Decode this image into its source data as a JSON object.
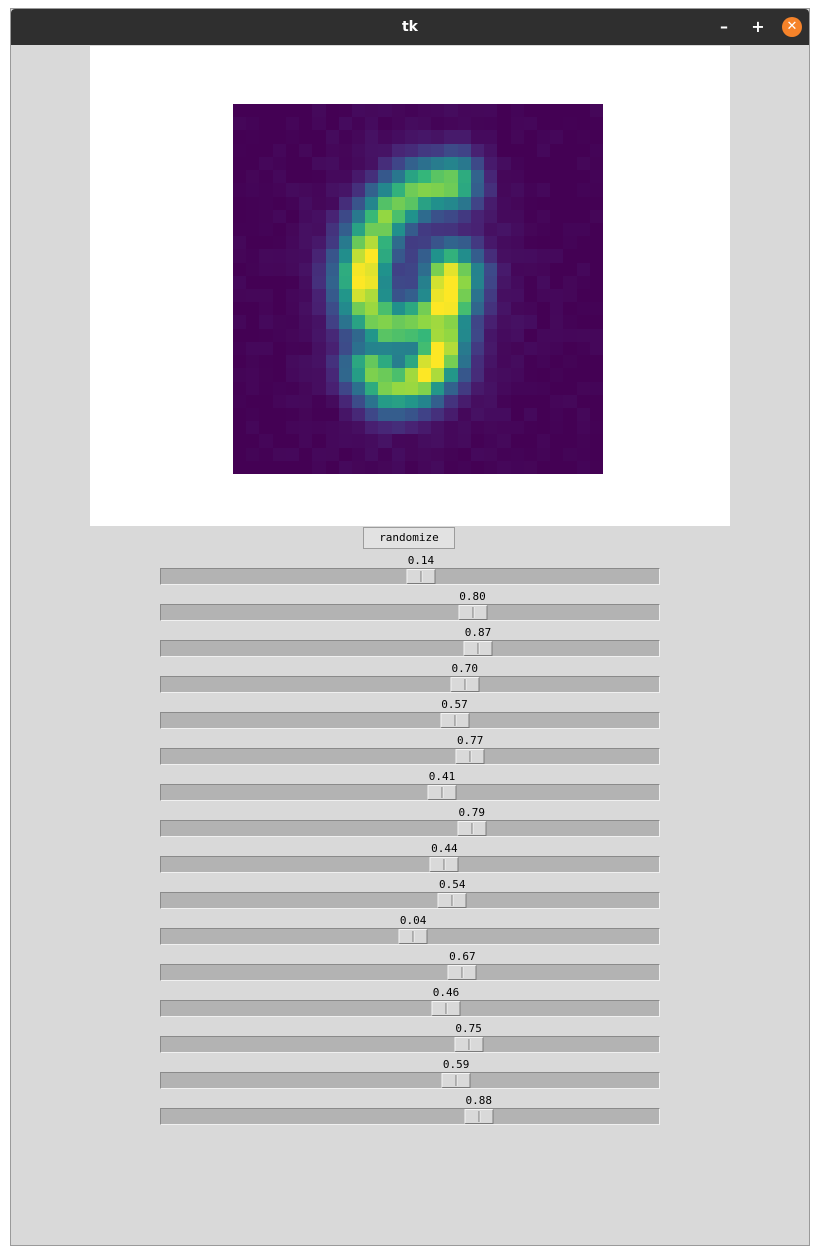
{
  "window": {
    "title": "tk"
  },
  "titlebar": {
    "minimize_icon": "minimize-icon",
    "maximize_icon": "maximize-icon",
    "close_icon": "close-icon"
  },
  "image": {
    "description_colormap": "viridis",
    "resolution": 28
  },
  "randomize_label": "randomize",
  "sliders": [
    {
      "label": "0.14",
      "value": 0.14
    },
    {
      "label": "0.80",
      "value": 0.8
    },
    {
      "label": "0.87",
      "value": 0.87
    },
    {
      "label": "0.70",
      "value": 0.7
    },
    {
      "label": "0.57",
      "value": 0.57
    },
    {
      "label": "0.77",
      "value": 0.77
    },
    {
      "label": "0.41",
      "value": 0.41
    },
    {
      "label": "0.79",
      "value": 0.79
    },
    {
      "label": "0.44",
      "value": 0.44
    },
    {
      "label": "0.54",
      "value": 0.54
    },
    {
      "label": "0.04",
      "value": 0.04
    },
    {
      "label": "0.67",
      "value": 0.67
    },
    {
      "label": "0.46",
      "value": 0.46
    },
    {
      "label": "0.75",
      "value": 0.75
    },
    {
      "label": "0.59",
      "value": 0.59
    },
    {
      "label": "0.88",
      "value": 0.88
    }
  ]
}
